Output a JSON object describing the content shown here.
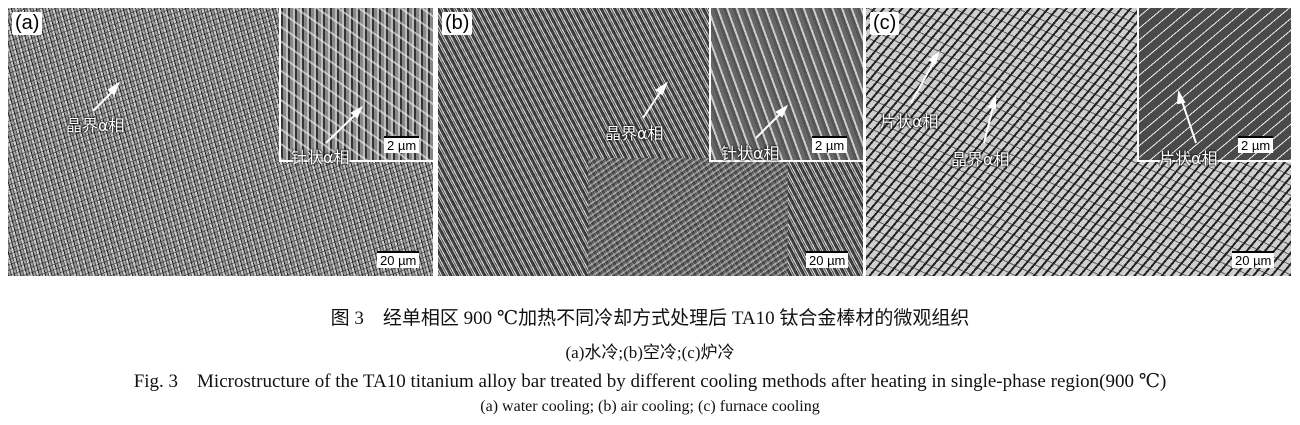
{
  "panels": [
    {
      "label": "(a)",
      "annotations": [
        "晶界α相",
        "针状α相"
      ],
      "inset_scale": "2 µm",
      "scale": "20 µm"
    },
    {
      "label": "(b)",
      "annotations": [
        "晶界α相",
        "针状α相"
      ],
      "inset_scale": "2 µm",
      "scale": "20 µm"
    },
    {
      "label": "(c)",
      "annotations": [
        "片状α相",
        "晶界α相",
        "片状α相"
      ],
      "inset_scale": "2 µm",
      "scale": "20 µm"
    }
  ],
  "caption": {
    "zh_title": "图 3　经单相区 900 ℃加热不同冷却方式处理后 TA10 钛合金棒材的微观组织",
    "zh_sub": "(a)水冷;(b)空冷;(c)炉冷",
    "en_title": "Fig. 3　Microstructure of the TA10 titanium alloy bar treated by different cooling methods after heating in single-phase region(900 ℃)",
    "en_sub": "(a) water cooling; (b) air cooling; (c) furnace cooling"
  }
}
